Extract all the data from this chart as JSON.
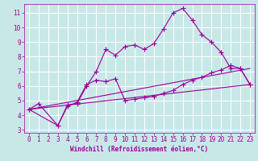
{
  "xlabel": "Windchill (Refroidissement éolien,°C)",
  "background_color": "#c8e8e8",
  "grid_color": "#ffffff",
  "line_color": "#990099",
  "xlim": [
    -0.5,
    23.5
  ],
  "ylim": [
    2.8,
    11.6
  ],
  "yticks": [
    3,
    4,
    5,
    6,
    7,
    8,
    9,
    10,
    11
  ],
  "xticks": [
    0,
    1,
    2,
    3,
    4,
    5,
    6,
    7,
    8,
    9,
    10,
    11,
    12,
    13,
    14,
    15,
    16,
    17,
    18,
    19,
    20,
    21,
    22,
    23
  ],
  "series1_x": [
    0,
    1,
    3,
    4,
    5,
    6,
    7,
    8,
    9,
    10,
    11,
    12,
    13,
    14,
    15,
    16,
    17,
    18,
    19,
    20,
    21,
    22,
    23
  ],
  "series1_y": [
    4.4,
    4.8,
    3.3,
    4.7,
    4.8,
    6.0,
    7.0,
    8.5,
    8.1,
    8.7,
    8.8,
    8.5,
    8.9,
    9.9,
    11.0,
    11.3,
    10.5,
    9.5,
    9.0,
    8.3,
    7.2,
    7.2,
    6.1
  ],
  "series2_x": [
    0,
    3,
    4,
    5,
    6,
    7,
    8,
    9,
    10,
    11,
    12,
    13,
    14,
    15,
    16,
    17,
    18,
    19,
    20,
    21,
    22,
    23
  ],
  "series2_y": [
    4.4,
    3.3,
    4.6,
    4.9,
    6.1,
    6.4,
    6.3,
    6.5,
    5.0,
    5.1,
    5.2,
    5.3,
    5.5,
    5.7,
    6.1,
    6.4,
    6.6,
    6.9,
    7.1,
    7.4,
    7.2,
    6.1
  ],
  "series3_x": [
    0,
    23
  ],
  "series3_y": [
    4.4,
    6.1
  ],
  "series4_x": [
    0,
    23
  ],
  "series4_y": [
    4.4,
    7.2
  ],
  "marker_size": 2.0,
  "line_width": 0.8,
  "tick_fontsize": 5.5,
  "xlabel_fontsize": 5.5
}
